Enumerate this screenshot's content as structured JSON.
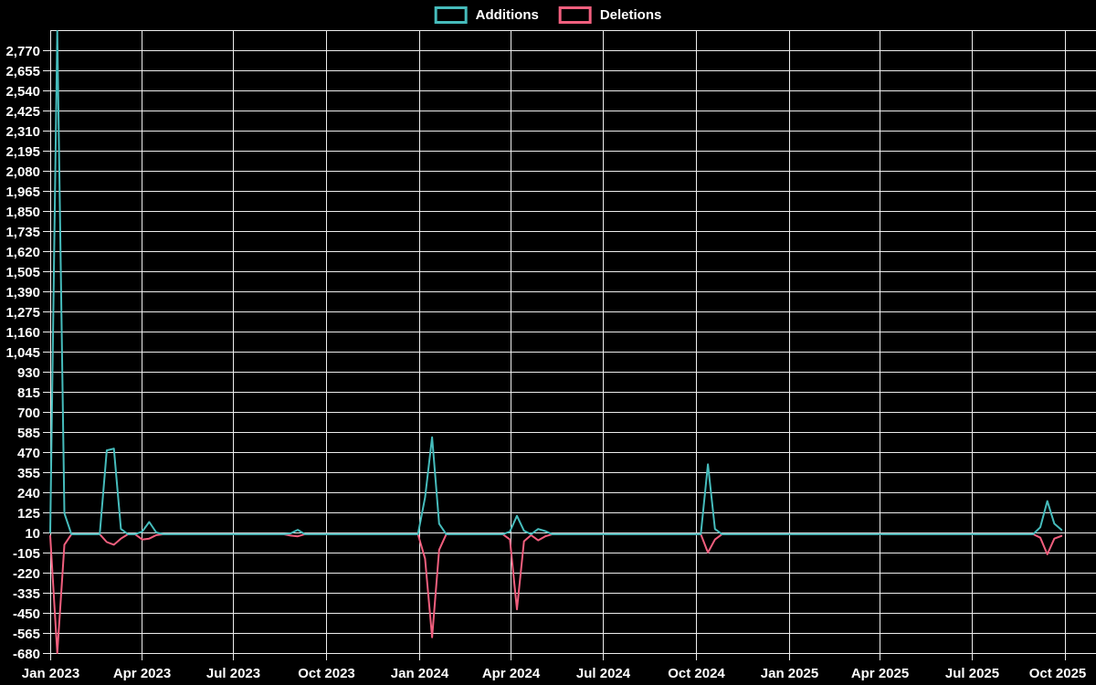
{
  "legend": {
    "items": [
      {
        "label": "Additions",
        "color": "#46bcbc"
      },
      {
        "label": "Deletions",
        "color": "#f15f7e"
      }
    ]
  },
  "chart_data": {
    "type": "line",
    "title": "",
    "xlabel": "",
    "ylabel": "",
    "grid": true,
    "legend_position": "top-center",
    "background_color": "#000000",
    "gridline_color": "#ededed",
    "text_color": "#ffffff",
    "y_axis": {
      "min": -680,
      "max": 2885,
      "tick_step": 115,
      "tick_labels_top_to_bottom": [
        "2,770",
        "2,655",
        "2,540",
        "2,425",
        "2,310",
        "2,195",
        "2,080",
        "1,965",
        "1,850",
        "1,735",
        "1,620",
        "1,505",
        "1,390",
        "1,275",
        "1,160",
        "1,045",
        "930",
        "815",
        "700",
        "585",
        "470",
        "355",
        "240",
        "125",
        "10",
        "-105",
        "-220",
        "-335",
        "-450",
        "-565",
        "-680"
      ]
    },
    "x_ticks": [
      {
        "date": "2023-01-01",
        "label": "Jan 2023"
      },
      {
        "date": "2023-04-01",
        "label": "Apr 2023"
      },
      {
        "date": "2023-07-01",
        "label": "Jul 2023"
      },
      {
        "date": "2023-10-01",
        "label": "Oct 2023"
      },
      {
        "date": "2024-01-01",
        "label": "Jan 2024"
      },
      {
        "date": "2024-04-01",
        "label": "Apr 2024"
      },
      {
        "date": "2024-07-01",
        "label": "Jul 2024"
      },
      {
        "date": "2024-10-01",
        "label": "Oct 2024"
      },
      {
        "date": "2025-01-01",
        "label": "Jan 2025"
      },
      {
        "date": "2025-04-01",
        "label": "Apr 2025"
      },
      {
        "date": "2025-07-01",
        "label": "Jul 2025"
      },
      {
        "date": "2025-10-01",
        "label": "Oct 2025"
      }
    ],
    "series": [
      {
        "name": "Deletions",
        "color": "#f15f7e",
        "points": [
          [
            "2023-01-01",
            -10
          ],
          [
            "2023-01-08",
            -680
          ],
          [
            "2023-01-15",
            -60
          ],
          [
            "2023-01-22",
            0
          ],
          [
            "2023-02-19",
            0
          ],
          [
            "2023-02-26",
            -45
          ],
          [
            "2023-03-05",
            -60
          ],
          [
            "2023-03-12",
            -25
          ],
          [
            "2023-03-19",
            0
          ],
          [
            "2023-03-26",
            0
          ],
          [
            "2023-04-02",
            -30
          ],
          [
            "2023-04-09",
            -25
          ],
          [
            "2023-04-16",
            -5
          ],
          [
            "2023-04-23",
            0
          ],
          [
            "2023-08-20",
            0
          ],
          [
            "2023-08-27",
            -8
          ],
          [
            "2023-09-03",
            -12
          ],
          [
            "2023-09-10",
            0
          ],
          [
            "2023-12-31",
            0
          ],
          [
            "2024-01-07",
            -140
          ],
          [
            "2024-01-14",
            -590
          ],
          [
            "2024-01-21",
            -90
          ],
          [
            "2024-01-28",
            0
          ],
          [
            "2024-03-24",
            0
          ],
          [
            "2024-03-31",
            -30
          ],
          [
            "2024-04-07",
            -430
          ],
          [
            "2024-04-14",
            -40
          ],
          [
            "2024-04-21",
            -5
          ],
          [
            "2024-04-28",
            -35
          ],
          [
            "2024-05-05",
            -12
          ],
          [
            "2024-05-12",
            0
          ],
          [
            "2024-10-06",
            0
          ],
          [
            "2024-10-13",
            -105
          ],
          [
            "2024-10-20",
            -30
          ],
          [
            "2024-10-27",
            0
          ],
          [
            "2025-08-31",
            0
          ],
          [
            "2025-09-07",
            -20
          ],
          [
            "2025-09-14",
            -115
          ],
          [
            "2025-09-21",
            -25
          ],
          [
            "2025-09-28",
            -10
          ]
        ]
      },
      {
        "name": "Additions",
        "color": "#46bcbc",
        "points": [
          [
            "2023-01-01",
            10
          ],
          [
            "2023-01-08",
            2880
          ],
          [
            "2023-01-15",
            120
          ],
          [
            "2023-01-22",
            0
          ],
          [
            "2023-02-19",
            0
          ],
          [
            "2023-02-26",
            480
          ],
          [
            "2023-03-05",
            490
          ],
          [
            "2023-03-12",
            30
          ],
          [
            "2023-03-19",
            0
          ],
          [
            "2023-03-26",
            0
          ],
          [
            "2023-04-02",
            15
          ],
          [
            "2023-04-09",
            70
          ],
          [
            "2023-04-16",
            10
          ],
          [
            "2023-04-23",
            0
          ],
          [
            "2023-08-20",
            0
          ],
          [
            "2023-08-27",
            5
          ],
          [
            "2023-09-03",
            25
          ],
          [
            "2023-09-10",
            0
          ],
          [
            "2023-12-31",
            0
          ],
          [
            "2024-01-07",
            210
          ],
          [
            "2024-01-14",
            555
          ],
          [
            "2024-01-21",
            60
          ],
          [
            "2024-01-28",
            0
          ],
          [
            "2024-03-24",
            0
          ],
          [
            "2024-03-31",
            15
          ],
          [
            "2024-04-07",
            105
          ],
          [
            "2024-04-14",
            20
          ],
          [
            "2024-04-21",
            0
          ],
          [
            "2024-04-28",
            30
          ],
          [
            "2024-05-05",
            18
          ],
          [
            "2024-05-12",
            0
          ],
          [
            "2024-10-06",
            0
          ],
          [
            "2024-10-13",
            400
          ],
          [
            "2024-10-20",
            30
          ],
          [
            "2024-10-27",
            0
          ],
          [
            "2025-08-31",
            0
          ],
          [
            "2025-09-07",
            40
          ],
          [
            "2025-09-14",
            190
          ],
          [
            "2025-09-21",
            60
          ],
          [
            "2025-09-28",
            25
          ]
        ]
      }
    ]
  }
}
